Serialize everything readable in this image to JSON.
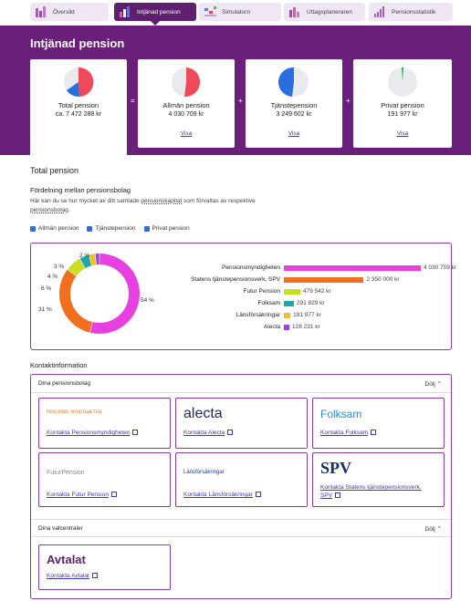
{
  "tabs": [
    {
      "label": "Översikt",
      "icon": "overview-icon"
    },
    {
      "label": "Intjänad pension",
      "icon": "earned-pension-icon"
    },
    {
      "label": "Simulatorn",
      "icon": "simulator-icon"
    },
    {
      "label": "Uttagsplaneraren",
      "icon": "withdrawal-planner-icon"
    },
    {
      "label": "Pensionsstatistik",
      "icon": "statistics-icon"
    }
  ],
  "header": {
    "title": "Intjänad pension"
  },
  "cards": [
    {
      "title": "Total pension",
      "value": "ca. 7 472 288 kr",
      "link": ""
    },
    {
      "title": "Allmän pension",
      "value": "4 030 709 kr",
      "link": "Visa"
    },
    {
      "title": "Tjänstepension",
      "value": "3 249 602 kr",
      "link": "Visa"
    },
    {
      "title": "Privat pension",
      "value": "191 977 kr",
      "link": "Visa"
    }
  ],
  "operators": [
    "=",
    "+",
    "+"
  ],
  "section": {
    "title": "Total pension",
    "subtitle": "Fördelning mellan pensionsbolag",
    "desc_before": "Här kan du se hur mycket av ditt samlade ",
    "desc_link": "pensionskapital",
    "desc_after": " som förvaltas av respektive",
    "desc_link2": "pensionsbolag",
    "desc_end": ".",
    "filters": [
      "Allmän pension",
      "Tjänstepension",
      "Privat pension"
    ]
  },
  "chart_data": {
    "type": "bar",
    "categories": [
      "Pensionsmyndigheten",
      "Statens tjänstepensionsverk, SPV",
      "Futur Pension",
      "Folksam",
      "Länsförsäkringar",
      "Alecta"
    ],
    "values": [
      4030709,
      2350000,
      479542,
      291829,
      191977,
      128231
    ],
    "value_labels": [
      "4 030 709 kr",
      "2 350 000 kr",
      "479 542 kr",
      "291 829 kr",
      "191 977 kr",
      "128 231 kr"
    ],
    "colors": [
      "#e83fe0",
      "#f07020",
      "#c8e020",
      "#20a8a8",
      "#f0c020",
      "#a040e0"
    ],
    "donut_percent_labels": [
      "54 %",
      "31 %",
      "6 %",
      "4 %",
      "3 %",
      "2 %"
    ]
  },
  "contacts": {
    "title": "Kontaktinformation",
    "group1": {
      "title": "Dina pensionsbolag",
      "toggle": "Dölj"
    },
    "group2": {
      "title": "Dina valcentraler",
      "toggle": "Dölj"
    },
    "companies": [
      {
        "logo": "PENSIONS MYNDIGHETEN",
        "link": "Kontakta Pensionsmyndigheten"
      },
      {
        "logo": "alecta",
        "link": "Kontakta Alecta"
      },
      {
        "logo": "Folksam",
        "link": "Kontakta Folksam"
      },
      {
        "logo": "FuturPension",
        "link": "Kontakta Futur Pension"
      },
      {
        "logo": "Länsförsäkringar",
        "link": "Kontakta Länsförsäkringar"
      },
      {
        "logo": "SPV",
        "link": "Kontakta Statens tjänstepensionsverk,",
        "link2": "SPV"
      }
    ],
    "valcentral": {
      "logo": "Avtalat",
      "link": "Kontakta Avtalat"
    }
  }
}
